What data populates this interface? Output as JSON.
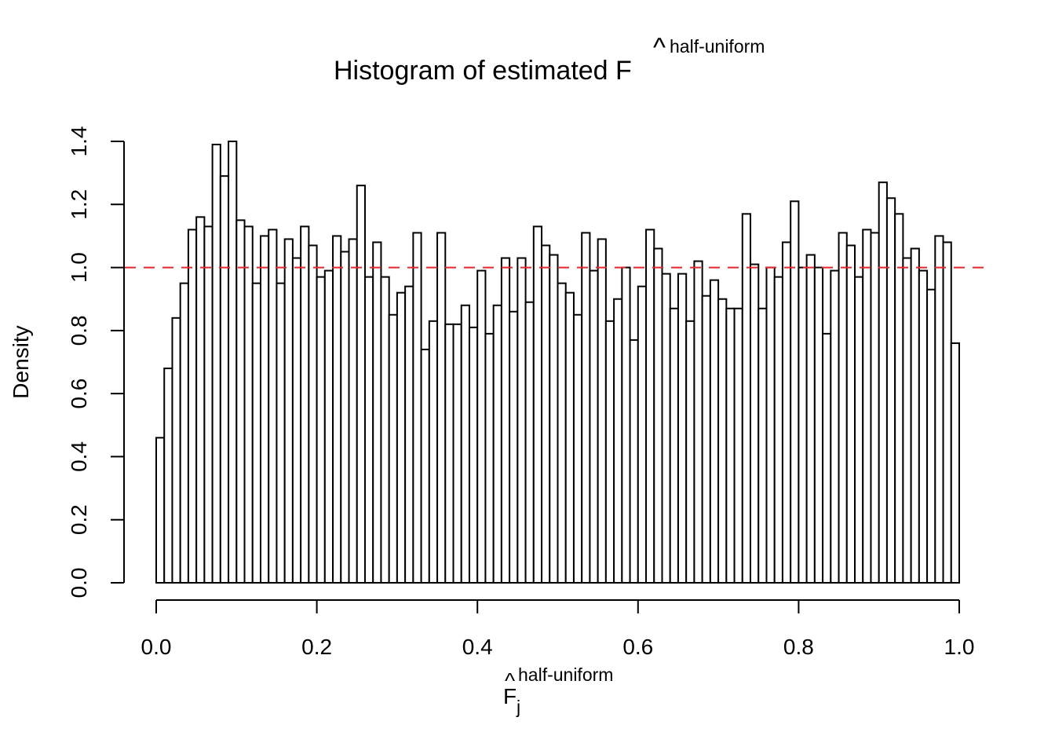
{
  "chart_data": {
    "type": "bar",
    "title": {
      "main": "Histogram of estimated F",
      "hat": "^",
      "sup": "half-uniform"
    },
    "xlabel": {
      "main": "F",
      "hat": "^",
      "sub": "j",
      "sup": "half-uniform"
    },
    "ylabel": "Density",
    "xlim": [
      0,
      1
    ],
    "ylim": [
      0,
      1.4
    ],
    "xticks": [
      "0.0",
      "0.2",
      "0.4",
      "0.6",
      "0.8",
      "1.0"
    ],
    "yticks": [
      "0.0",
      "0.2",
      "0.4",
      "0.6",
      "0.8",
      "1.0",
      "1.2",
      "1.4"
    ],
    "bin_width": 0.01,
    "values": [
      0.46,
      0.68,
      0.84,
      0.95,
      1.12,
      1.16,
      1.13,
      1.39,
      1.29,
      1.4,
      1.15,
      1.13,
      0.95,
      1.1,
      1.12,
      0.95,
      1.09,
      1.03,
      1.13,
      1.07,
      0.97,
      0.99,
      1.1,
      1.05,
      1.09,
      1.26,
      0.97,
      1.08,
      0.97,
      0.85,
      0.92,
      0.94,
      1.11,
      0.74,
      0.83,
      1.11,
      0.82,
      0.82,
      0.88,
      0.81,
      0.99,
      0.79,
      0.88,
      1.03,
      0.86,
      1.03,
      0.89,
      1.13,
      1.07,
      1.04,
      0.95,
      0.92,
      0.85,
      1.11,
      0.99,
      1.09,
      0.83,
      0.9,
      1.0,
      0.77,
      0.94,
      1.12,
      1.06,
      0.98,
      0.87,
      0.98,
      0.83,
      1.02,
      0.91,
      0.96,
      0.9,
      0.87,
      0.87,
      1.17,
      1.01,
      0.87,
      1.0,
      0.97,
      1.08,
      1.21,
      1.0,
      1.04,
      1.0,
      0.79,
      0.99,
      1.11,
      1.07,
      0.97,
      1.12,
      1.11,
      1.27,
      1.22,
      1.17,
      1.03,
      1.06,
      0.99,
      0.93,
      1.1,
      1.08,
      0.76
    ],
    "reference_line": {
      "y": 1.0,
      "color": "#e8262a",
      "style": "dashed"
    },
    "grid": false,
    "legend": "none"
  }
}
